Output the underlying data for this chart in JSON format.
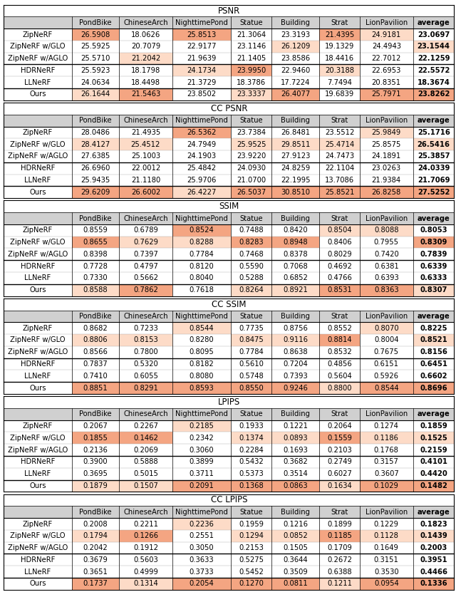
{
  "tables": [
    {
      "title": "PSNR",
      "columns": [
        "",
        "PondBike",
        "ChineseArch",
        "NighttimePond",
        "Statue",
        "Building",
        "Strat",
        "LionPavilion",
        "average"
      ],
      "rows": [
        [
          "ZipNeRF",
          "26.5908",
          "18.0626",
          "25.8513",
          "21.3064",
          "23.3193",
          "21.4395",
          "24.9181",
          "23.0697"
        ],
        [
          "ZipNeRF w/GLO",
          "25.5925",
          "20.7079",
          "22.9177",
          "23.1146",
          "26.1209",
          "19.1329",
          "24.4943",
          "23.1544"
        ],
        [
          "ZipNeRF w/AGLO",
          "25.5710",
          "21.2042",
          "21.9639",
          "21.1405",
          "23.8586",
          "18.4416",
          "22.7012",
          "22.1259"
        ],
        [
          "HDRNeRF",
          "25.5923",
          "18.1798",
          "24.1734",
          "23.9950",
          "22.9460",
          "20.3188",
          "22.6953",
          "22.5572"
        ],
        [
          "LLNeRF",
          "24.0634",
          "18.4498",
          "21.3729",
          "18.3786",
          "17.7224",
          "7.7494",
          "20.8351",
          "18.3674"
        ],
        [
          "Ours",
          "26.1644",
          "21.5463",
          "23.8502",
          "23.3337",
          "26.4077",
          "19.6839",
          "25.7971",
          "23.8262"
        ]
      ],
      "higher_is_better": true
    },
    {
      "title": "CC PSNR",
      "columns": [
        "",
        "PondBike",
        "ChineseArch",
        "NighttimePond",
        "Statue",
        "Building",
        "Strat",
        "LionPavilion",
        "average"
      ],
      "rows": [
        [
          "ZipNeRF",
          "28.0486",
          "21.4935",
          "26.5362",
          "23.7384",
          "26.8481",
          "23.5512",
          "25.9849",
          "25.1716"
        ],
        [
          "ZipNeRF w/GLO",
          "28.4127",
          "25.4512",
          "24.7949",
          "25.9525",
          "29.8511",
          "25.4714",
          "25.8575",
          "26.5416"
        ],
        [
          "ZipNeRF w/AGLO",
          "27.6385",
          "25.1003",
          "24.1903",
          "23.9220",
          "27.9123",
          "24.7473",
          "24.1891",
          "25.3857"
        ],
        [
          "HDRNeRF",
          "26.6960",
          "22.0012",
          "25.4842",
          "24.0930",
          "24.8259",
          "22.1104",
          "23.0263",
          "24.0339"
        ],
        [
          "LLNeRF",
          "25.9435",
          "21.1180",
          "25.9706",
          "21.0700",
          "22.1995",
          "13.7086",
          "21.9384",
          "21.7069"
        ],
        [
          "Ours",
          "29.6209",
          "26.6002",
          "26.4227",
          "26.5037",
          "30.8510",
          "25.8521",
          "26.8258",
          "27.5252"
        ]
      ],
      "higher_is_better": true
    },
    {
      "title": "SSIM",
      "columns": [
        "",
        "PondBike",
        "ChineseArch",
        "NighttimePond",
        "Statue",
        "Building",
        "Strat",
        "LionPavilion",
        "average"
      ],
      "rows": [
        [
          "ZipNeRF",
          "0.8559",
          "0.6789",
          "0.8524",
          "0.7488",
          "0.8420",
          "0.8504",
          "0.8088",
          "0.8053"
        ],
        [
          "ZipNeRF w/GLO",
          "0.8655",
          "0.7629",
          "0.8288",
          "0.8283",
          "0.8948",
          "0.8406",
          "0.7955",
          "0.8309"
        ],
        [
          "ZipNeRF w/AGLO",
          "0.8398",
          "0.7397",
          "0.7784",
          "0.7468",
          "0.8378",
          "0.8029",
          "0.7420",
          "0.7839"
        ],
        [
          "HDRNeRF",
          "0.7728",
          "0.4797",
          "0.8120",
          "0.5590",
          "0.7068",
          "0.4692",
          "0.6381",
          "0.6339"
        ],
        [
          "LLNeRF",
          "0.7330",
          "0.5662",
          "0.8040",
          "0.5288",
          "0.6852",
          "0.4766",
          "0.6393",
          "0.6333"
        ],
        [
          "Ours",
          "0.8588",
          "0.7862",
          "0.7618",
          "0.8264",
          "0.8921",
          "0.8531",
          "0.8363",
          "0.8307"
        ]
      ],
      "higher_is_better": true
    },
    {
      "title": "CC SSIM",
      "columns": [
        "",
        "PondBike",
        "ChineseArch",
        "NighttimePond",
        "Statue",
        "Building",
        "Strat",
        "LionPavilion",
        "average"
      ],
      "rows": [
        [
          "ZipNeRF",
          "0.8682",
          "0.7233",
          "0.8544",
          "0.7735",
          "0.8756",
          "0.8552",
          "0.8070",
          "0.8225"
        ],
        [
          "ZipNeRF w/GLO",
          "0.8806",
          "0.8153",
          "0.8280",
          "0.8475",
          "0.9116",
          "0.8814",
          "0.8004",
          "0.8521"
        ],
        [
          "ZipNeRF w/AGLO",
          "0.8566",
          "0.7800",
          "0.8095",
          "0.7784",
          "0.8638",
          "0.8532",
          "0.7675",
          "0.8156"
        ],
        [
          "HDRNeRF",
          "0.7837",
          "0.5320",
          "0.8182",
          "0.5610",
          "0.7204",
          "0.4856",
          "0.6151",
          "0.6451"
        ],
        [
          "LLNeRF",
          "0.7410",
          "0.6055",
          "0.8080",
          "0.5748",
          "0.7393",
          "0.5604",
          "0.5926",
          "0.6602"
        ],
        [
          "Ours",
          "0.8851",
          "0.8291",
          "0.8593",
          "0.8550",
          "0.9246",
          "0.8800",
          "0.8544",
          "0.8696"
        ]
      ],
      "higher_is_better": true
    },
    {
      "title": "LPIPS",
      "columns": [
        "",
        "PondBike",
        "ChineseArch",
        "NighttimePond",
        "Statue",
        "Building",
        "Strat",
        "LionPavilion",
        "average"
      ],
      "rows": [
        [
          "ZipNeRF",
          "0.2067",
          "0.2267",
          "0.2185",
          "0.1933",
          "0.1221",
          "0.2064",
          "0.1274",
          "0.1859"
        ],
        [
          "ZipNeRF w/GLO",
          "0.1855",
          "0.1462",
          "0.2342",
          "0.1374",
          "0.0893",
          "0.1559",
          "0.1186",
          "0.1525"
        ],
        [
          "ZipNeRF w/AGLO",
          "0.2136",
          "0.2069",
          "0.3060",
          "0.2284",
          "0.1693",
          "0.2103",
          "0.1768",
          "0.2159"
        ],
        [
          "HDRNeRF",
          "0.3900",
          "0.5888",
          "0.3899",
          "0.5432",
          "0.3682",
          "0.2749",
          "0.3157",
          "0.4101"
        ],
        [
          "LLNeRF",
          "0.3695",
          "0.5015",
          "0.3711",
          "0.5373",
          "0.3514",
          "0.6027",
          "0.3607",
          "0.4420"
        ],
        [
          "Ours",
          "0.1879",
          "0.1507",
          "0.2091",
          "0.1368",
          "0.0863",
          "0.1634",
          "0.1029",
          "0.1482"
        ]
      ],
      "higher_is_better": false
    },
    {
      "title": "CC LPIPS",
      "columns": [
        "",
        "PondBike",
        "ChineseArch",
        "NighttimePond",
        "Statue",
        "Building",
        "Strat",
        "LionPavilion",
        "average"
      ],
      "rows": [
        [
          "ZipNeRF",
          "0.2008",
          "0.2211",
          "0.2236",
          "0.1959",
          "0.1216",
          "0.1899",
          "0.1229",
          "0.1823"
        ],
        [
          "ZipNeRF w/GLO",
          "0.1794",
          "0.1266",
          "0.2551",
          "0.1294",
          "0.0852",
          "0.1185",
          "0.1128",
          "0.1439"
        ],
        [
          "ZipNeRF w/AGLO",
          "0.2042",
          "0.1912",
          "0.3050",
          "0.2153",
          "0.1505",
          "0.1709",
          "0.1649",
          "0.2003"
        ],
        [
          "HDRNeRF",
          "0.3679",
          "0.5603",
          "0.3633",
          "0.5275",
          "0.3644",
          "0.2672",
          "0.3151",
          "0.3951"
        ],
        [
          "LLNeRF",
          "0.3651",
          "0.4999",
          "0.3733",
          "0.5452",
          "0.3509",
          "0.6388",
          "0.3530",
          "0.4466"
        ],
        [
          "Ours",
          "0.1737",
          "0.1314",
          "0.2054",
          "0.1270",
          "0.0811",
          "0.1211",
          "0.0954",
          "0.1336"
        ]
      ],
      "higher_is_better": false
    }
  ],
  "color_best": "#f4a582",
  "color_second": "#fddbc7",
  "color_header": "#d0d0d0",
  "title_fontsize": 8.5,
  "cell_fontsize": 7.2,
  "header_fontsize": 7.2
}
